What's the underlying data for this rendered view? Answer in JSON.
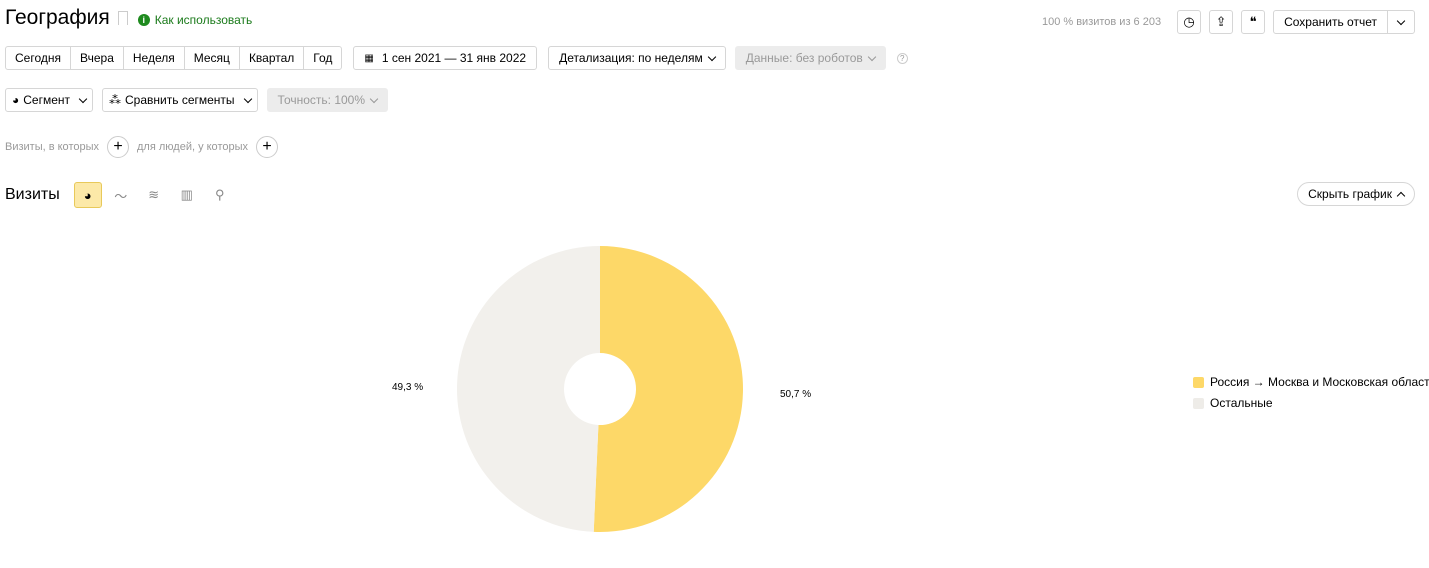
{
  "header": {
    "title": "География",
    "howto": "Как использовать",
    "visits_info": "100 % визитов из 6 203",
    "save_label": "Сохранить отчет"
  },
  "periods": [
    "Сегодня",
    "Вчера",
    "Неделя",
    "Месяц",
    "Квартал",
    "Год"
  ],
  "date_range": "1 сен 2021 — 31 янв 2022",
  "detail": "Детализация: по неделям",
  "data_filter": "Данные: без роботов",
  "segment": "Сегмент",
  "compare": "Сравнить сегменты",
  "accuracy": "Точность: 100%",
  "filters": {
    "visits_label": "Визиты, в которых",
    "people_label": "для людей, у которых"
  },
  "chart_header": {
    "title": "Визиты",
    "hide_label": "Скрыть график",
    "active_view": "pie"
  },
  "chart_data": {
    "type": "pie",
    "donut": true,
    "slices": [
      {
        "name": "Россия → Москва и Московская область",
        "value": 50.7,
        "label": "50,7 %",
        "color": "#fdd868"
      },
      {
        "name": "Остальные",
        "value": 49.3,
        "label": "49,3 %",
        "color": "#f2f0ec"
      }
    ],
    "legend_position": "right"
  }
}
